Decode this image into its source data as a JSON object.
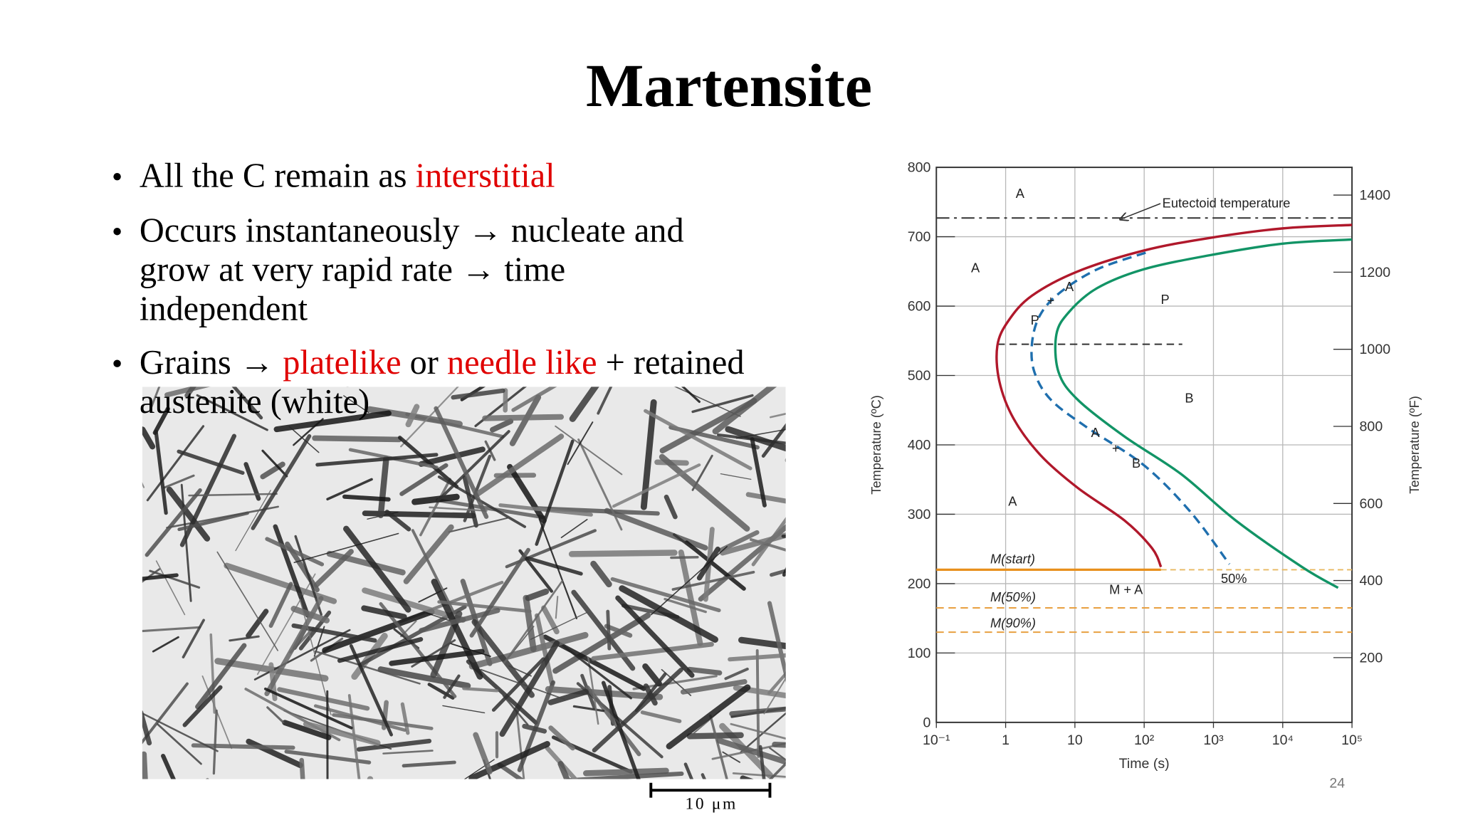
{
  "slide": {
    "title": "Martensite",
    "bullets": [
      {
        "lines": [
          [
            {
              "text": "All the C remain as "
            },
            {
              "text": "interstitial",
              "color": "#e00000"
            }
          ]
        ]
      },
      {
        "lines": [
          [
            {
              "text": "Occurs instantaneously → nucleate and"
            }
          ],
          [
            {
              "text": "grow at very rapid rate → time"
            }
          ],
          [
            {
              "text": "independent"
            }
          ]
        ]
      },
      {
        "lines": [
          [
            {
              "text": "Grains → "
            },
            {
              "text": "platelike",
              "color": "#e00000"
            },
            {
              "text": " or "
            },
            {
              "text": "needle like",
              "color": "#e00000"
            },
            {
              "text": " + retained"
            }
          ],
          [
            {
              "text": "austenite (white)"
            }
          ]
        ]
      }
    ],
    "scale_bar_label": "10 μm",
    "page_number": "24"
  },
  "chart_data": {
    "type": "line",
    "xlabel": "Time (s)",
    "ylabel": "Temperature (ºC)",
    "y2label": "Temperature (ºF)",
    "xscale": "log",
    "xlim": [
      0.1,
      100000
    ],
    "xticks": [
      {
        "value": 0.1,
        "label": "10⁻¹"
      },
      1,
      10,
      {
        "value": 100,
        "label": "10²"
      },
      {
        "value": 1000,
        "label": "10³"
      },
      {
        "value": 10000,
        "label": "10⁴"
      },
      {
        "value": 100000,
        "label": "10⁵"
      }
    ],
    "ylim": [
      0,
      800
    ],
    "yticks": [
      0,
      100,
      200,
      300,
      400,
      500,
      600,
      700,
      800
    ],
    "y2lim": [
      32,
      1472
    ],
    "y2ticks": [
      200,
      400,
      600,
      800,
      1000,
      1200,
      1400
    ],
    "grid": true,
    "series": [
      {
        "color": "#b0182b",
        "dash": "solid",
        "x": [
          100000,
          10000,
          850,
          98,
          11,
          2.4,
          1.1,
          0.76,
          0.81,
          1.3,
          3.2,
          11,
          52,
          130,
          175
        ],
        "values": [
          717,
          712,
          698,
          680,
          650,
          615,
          579,
          543,
          492,
          438,
          385,
          338,
          291,
          251,
          224
        ]
      },
      {
        "color": "#1f6fae",
        "dash": "dashed",
        "x": [
          105,
          21,
          6,
          3.1,
          2.4,
          2.6,
          4.5,
          15,
          98,
          460,
          1700
        ],
        "values": [
          677,
          653,
          619,
          586,
          546,
          505,
          465,
          425,
          371,
          304,
          228
        ]
      },
      {
        "color": "#129466",
        "dash": "solid",
        "x": [
          100000,
          10000,
          850,
          98,
          21,
          8.3,
          5.4,
          5.8,
          11,
          52,
          340,
          2100,
          19000,
          63000
        ],
        "values": [
          696,
          690,
          673,
          653,
          626,
          592,
          559,
          505,
          465,
          412,
          358,
          291,
          224,
          194
        ]
      }
    ],
    "reference_lines": [
      {
        "y": 727,
        "color": "#333333",
        "style": "dashdot",
        "label": "Eutectoid temperature"
      },
      {
        "y": 545,
        "color": "#333333",
        "style": "dashed",
        "x": [
          0.76,
          355
        ]
      },
      {
        "y": 220,
        "color": "#e8901c",
        "style": "solid",
        "label": "M(start)"
      },
      {
        "y": 165,
        "color": "#e8a040",
        "style": "dashed",
        "label": "M(50%)"
      },
      {
        "y": 130,
        "color": "#e8a040",
        "style": "dashed",
        "label": "M(90%)"
      }
    ],
    "annotations": [
      "A",
      "A",
      "P",
      "B",
      "A",
      "M + A",
      "50%",
      "A",
      "+",
      "P",
      "A",
      "+",
      "B"
    ]
  }
}
